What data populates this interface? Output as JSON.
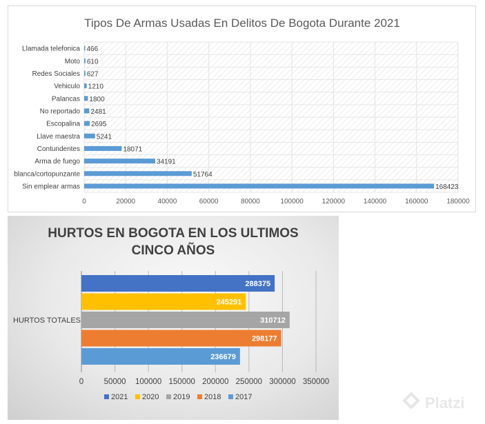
{
  "chart_data": [
    {
      "type": "bar",
      "orientation": "horizontal",
      "title": "Tipos De Armas Usadas En Delitos De Bogota Durante 2021",
      "categories": [
        "Llamada telefonica",
        "Moto",
        "Redes Sociales",
        "Vehiculo",
        "Palancas",
        "No reportado",
        "Escopalina",
        "Llave maestra",
        "Contundentes",
        "Arma de fuego",
        "blanca/cortopunzante",
        "Sin emplear armas"
      ],
      "values": [
        466,
        610,
        627,
        1210,
        1800,
        2481,
        2695,
        5241,
        18071,
        34191,
        51764,
        168423
      ],
      "data_labels": [
        "466",
        "610",
        "627",
        "1210",
        "1800",
        "2481",
        "2695",
        "5241",
        "18071",
        "34191",
        "51764",
        "168423"
      ],
      "x_ticks": [
        "0",
        "20000",
        "40000",
        "60000",
        "80000",
        "100000",
        "120000",
        "140000",
        "160000",
        "180000"
      ],
      "xlim": [
        0,
        180000
      ],
      "grid": true,
      "color": "#5b9bd5"
    },
    {
      "type": "bar",
      "orientation": "horizontal",
      "title": "HURTOS EN BOGOTA EN LOS ULTIMOS CINCO AÑOS",
      "title_lines": [
        "HURTOS EN BOGOTA EN LOS ULTIMOS",
        "CINCO AÑOS"
      ],
      "category": "HURTOS TOTALES",
      "series": [
        {
          "name": "2021",
          "value": 288375,
          "label": "288375",
          "color": "#4472c4"
        },
        {
          "name": "2020",
          "value": 245291,
          "label": "245291",
          "color": "#ffc000"
        },
        {
          "name": "2019",
          "value": 310712,
          "label": "310712",
          "color": "#a5a5a5"
        },
        {
          "name": "2018",
          "value": 298177,
          "label": "298177",
          "color": "#ed7d31"
        },
        {
          "name": "2017",
          "value": 236679,
          "label": "236679",
          "color": "#5b9bd5"
        }
      ],
      "x_ticks": [
        "0",
        "50000",
        "100000",
        "150000",
        "200000",
        "250000",
        "300000",
        "350000"
      ],
      "xlim": [
        0,
        350000
      ],
      "grid": true,
      "legend_position": "bottom"
    }
  ],
  "watermark": {
    "text": "Platzi"
  }
}
